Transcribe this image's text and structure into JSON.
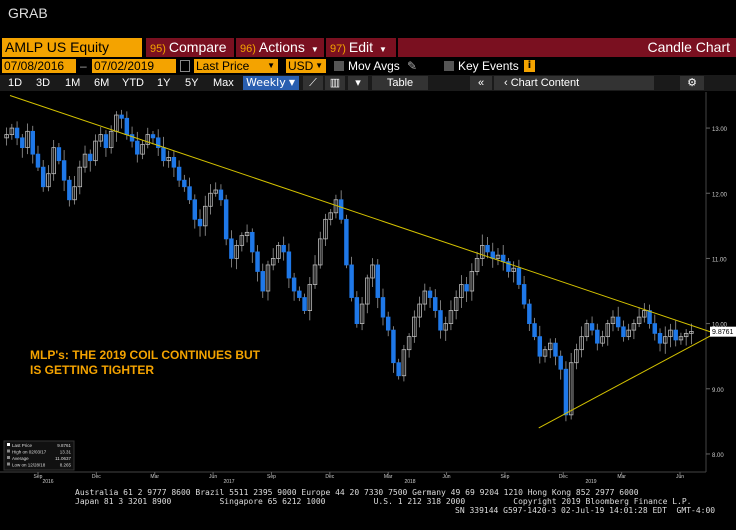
{
  "window": {
    "title": "GRAB"
  },
  "toolbar": {
    "security": "AMLP US Equity",
    "compare": {
      "num": "95)",
      "label": "Compare"
    },
    "actions": {
      "num": "96)",
      "label": "Actions"
    },
    "edit": {
      "num": "97)",
      "label": "Edit"
    },
    "chart_name": "Candle Chart"
  },
  "fields": {
    "start_date": "07/08/2016",
    "end_date": "07/02/2019",
    "price_field": "Last Price",
    "currency": "USD",
    "mov_avgs": "Mov Avgs",
    "key_events": "Key Events"
  },
  "periods": [
    "1D",
    "3D",
    "1M",
    "6M",
    "YTD",
    "1Y",
    "5Y",
    "Max"
  ],
  "frequency": "Weekly",
  "table_label": "Table",
  "chart_content_label": "Chart Content",
  "chart_data": {
    "type": "candlestick",
    "ylim": [
      7.8,
      13.4
    ],
    "yticks": [
      "13.00",
      "12.00",
      "11.00",
      "10.00",
      "9.00",
      "8.00"
    ],
    "xticks": [
      "Sep",
      "Dec",
      "Mar",
      "Jun",
      "Sep",
      "Dec",
      "Mar",
      "Jun",
      "Sep",
      "Dec",
      "Mar",
      "Jun"
    ],
    "years": [
      "2016",
      "2017",
      "2018",
      "2019"
    ],
    "last_price_tag": "9.8761",
    "annotation": [
      "MLP's: THE 2019 COIL CONTINUES BUT",
      "IS GETTING TIGHTER"
    ],
    "closes": [
      12.9,
      13.0,
      12.85,
      12.7,
      12.95,
      12.6,
      12.4,
      12.1,
      12.3,
      12.7,
      12.5,
      12.2,
      11.9,
      12.1,
      12.4,
      12.6,
      12.5,
      12.8,
      12.9,
      12.7,
      12.95,
      13.2,
      13.15,
      12.9,
      12.8,
      12.6,
      12.75,
      12.9,
      12.85,
      12.7,
      12.5,
      12.55,
      12.4,
      12.2,
      12.1,
      11.9,
      11.6,
      11.5,
      11.8,
      12.0,
      12.05,
      11.9,
      11.3,
      11.0,
      11.2,
      11.35,
      11.4,
      11.1,
      10.8,
      10.5,
      10.9,
      11.0,
      11.2,
      11.1,
      10.7,
      10.5,
      10.4,
      10.2,
      10.6,
      10.9,
      11.3,
      11.6,
      11.7,
      11.9,
      11.6,
      10.9,
      10.4,
      10.0,
      10.3,
      10.7,
      10.9,
      10.4,
      10.1,
      9.9,
      9.4,
      9.2,
      9.6,
      9.8,
      10.1,
      10.3,
      10.5,
      10.4,
      10.2,
      9.9,
      10.0,
      10.2,
      10.4,
      10.6,
      10.5,
      10.8,
      11.0,
      11.2,
      11.1,
      11.0,
      11.05,
      10.95,
      10.8,
      10.85,
      10.6,
      10.3,
      10.0,
      9.8,
      9.5,
      9.6,
      9.7,
      9.5,
      9.3,
      8.6,
      9.4,
      9.6,
      9.8,
      10.0,
      9.9,
      9.7,
      9.8,
      10.0,
      10.1,
      9.95,
      9.8,
      9.9,
      10.0,
      10.1,
      10.2,
      10.0,
      9.85,
      9.7,
      9.8,
      9.9,
      9.75,
      9.8,
      9.85,
      9.88
    ],
    "trendline_upper": [
      [
        0,
        13.5
      ],
      [
        1,
        9.85
      ]
    ],
    "trendline_lower": [
      [
        0.75,
        8.4
      ],
      [
        1,
        9.85
      ]
    ],
    "legend": [
      {
        "label": "Last Price",
        "value": "9.8761"
      },
      {
        "label": "High on 02/03/17",
        "value": "13.31"
      },
      {
        "label": "Average",
        "value": "11.0637"
      },
      {
        "label": "Low on 12/28/18",
        "value": "8.265"
      }
    ]
  },
  "footer": {
    "line1": "Australia 61 2 9777 8600 Brazil 5511 2395 9000 Europe 44 20 7330 7500 Germany 49 69 9204 1210 Hong Kong 852 2977 6000",
    "line2": "Japan 81 3 3201 8900          Singapore 65 6212 1000          U.S. 1 212 318 2000          Copyright 2019 Bloomberg Finance L.P.",
    "line3": "SN 339144 G597-1420-3 02-Jul-19 14:01:28 EDT  GMT-4:00"
  },
  "colors": {
    "accent": "#f4a300",
    "bar_red": "#7a1020",
    "up": "#bbbbbb",
    "down": "#1f78e8",
    "trend": "#d4c200"
  }
}
